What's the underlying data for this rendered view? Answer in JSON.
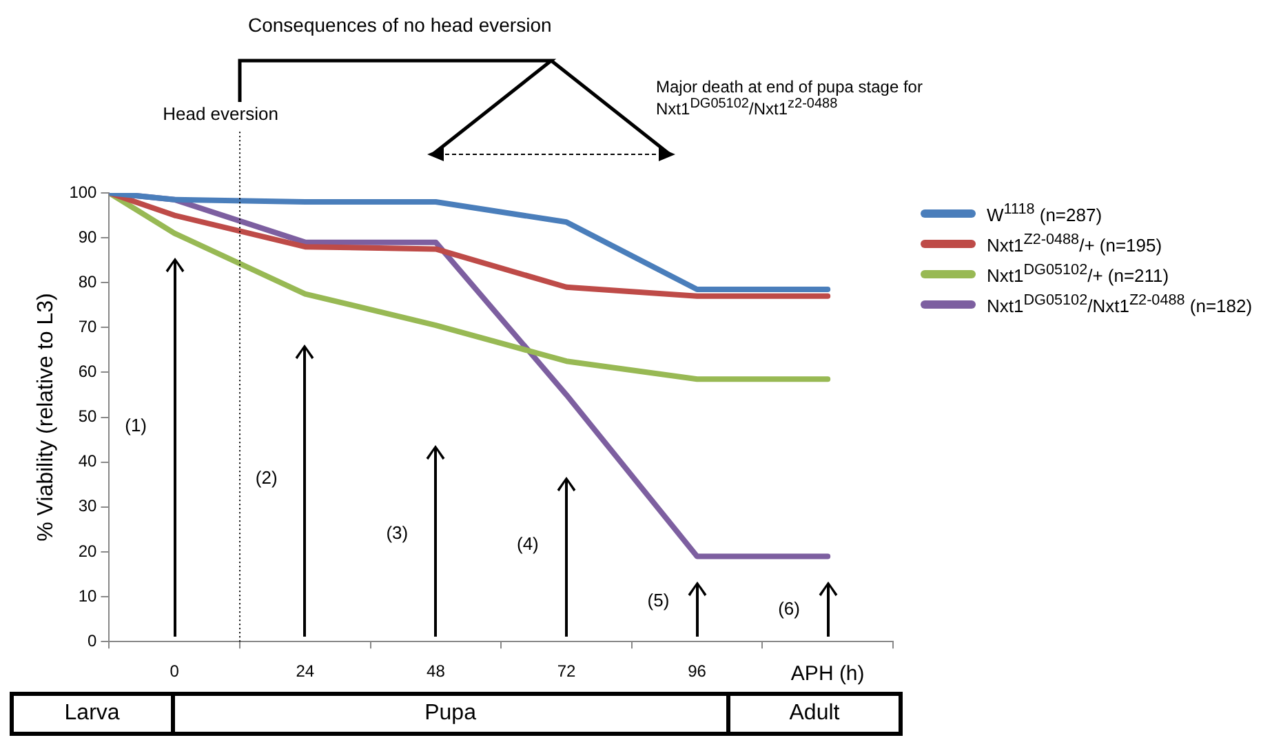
{
  "chart_data": {
    "type": "line",
    "ylabel": "% Viability (relative to L3)",
    "xlabel": "APH (h)",
    "x": [
      -12,
      0,
      24,
      48,
      72,
      96,
      120
    ],
    "xlim": [
      -12,
      132
    ],
    "xticks": [
      {
        "value": -12,
        "label": null
      },
      0,
      {
        "value": 12,
        "label": null
      },
      24,
      {
        "value": 36,
        "label": null
      },
      48,
      {
        "value": 60,
        "label": null
      },
      72,
      {
        "value": 84,
        "label": null
      },
      96,
      {
        "value": 108,
        "label": null
      },
      {
        "value": 132,
        "label": null
      }
    ],
    "ylim": [
      0,
      100
    ],
    "yticks": [
      0,
      10,
      20,
      30,
      40,
      50,
      60,
      70,
      80,
      90,
      100
    ],
    "grid": false,
    "legend": "right",
    "marker": "none",
    "line_style": "solid",
    "series": [
      {
        "name": "W$^{1118}$ (n=287)",
        "color": "#4a7ebb",
        "values": [
          100,
          98.5,
          98,
          98,
          93.5,
          78.5,
          78.5
        ]
      },
      {
        "name": "Nxt1$^{Z2-0488}$/+ (n=195)",
        "color": "#be4b48",
        "values": [
          100,
          95,
          88,
          87.5,
          79,
          77,
          77
        ]
      },
      {
        "name": "Nxt1$^{DG05102}$/+ (n=211)",
        "color": "#98b954",
        "values": [
          100,
          91,
          77.5,
          70.5,
          62.5,
          58.5,
          58.5
        ]
      },
      {
        "name": "Nxt1$^{DG05102}$/Nxt1$^{Z2-0488}$ (n=182)",
        "color": "#7d5fa0",
        "values": [
          100,
          98.5,
          89,
          89,
          55,
          19,
          19
        ]
      }
    ],
    "ref_lines": [
      {
        "axis": "x",
        "value": 12,
        "label": "Head eversion",
        "line_style": "dotted",
        "color": "#000000"
      }
    ],
    "annotations": [
      "(1)",
      "(2)",
      "(3)",
      "(4)",
      "(5)",
      "(6)",
      "Consequences of no head eversion",
      "Major death at end of pupa stage for Nxt1$^{DG05102}$/Nxt1$^{z2-0488}$",
      "Larva",
      "Pupa",
      "Adult"
    ]
  }
}
